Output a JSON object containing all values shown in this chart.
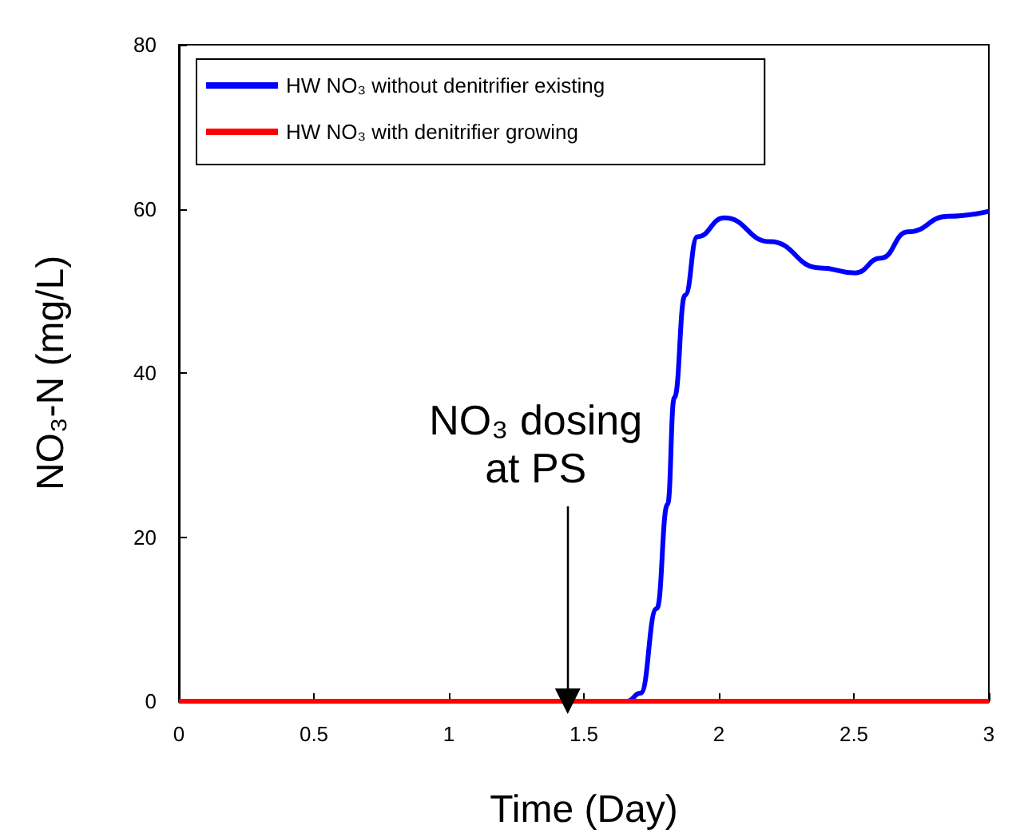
{
  "chart_data": {
    "type": "line",
    "xlabel": "Time (Day)",
    "ylabel": "NO₃-N (mg/L)",
    "xlim": [
      0,
      3
    ],
    "xticks": [
      0,
      0.5,
      1,
      1.5,
      2,
      2.5,
      3
    ],
    "ylim": [
      0,
      80
    ],
    "yticks": [
      0,
      20,
      40,
      60,
      80
    ],
    "grid": false,
    "legend": "top left",
    "marker": "none",
    "line_style": "solid",
    "annotations": [
      {
        "text": "NO₃ dosing\nat PS",
        "x": 1.44,
        "y": 0
      }
    ],
    "series": [
      {
        "name": "HW NO₃ without denitrifier existing",
        "color": "#0000ff",
        "x": [
          0,
          1.66,
          1.71,
          1.77,
          1.81,
          1.835,
          1.875,
          1.92,
          2.02,
          2.19,
          2.375,
          2.505,
          2.6,
          2.7,
          2.85,
          3
        ],
        "values": [
          0,
          0,
          1,
          11.3,
          24,
          37,
          49.5,
          56.6,
          58.9,
          56,
          52.8,
          52.2,
          54,
          57.2,
          59.1,
          59.7
        ]
      },
      {
        "name": "HW NO₃ with denitrifier growing",
        "color": "#ff0000",
        "x": [
          0,
          3
        ],
        "values": [
          0,
          0
        ]
      }
    ]
  }
}
